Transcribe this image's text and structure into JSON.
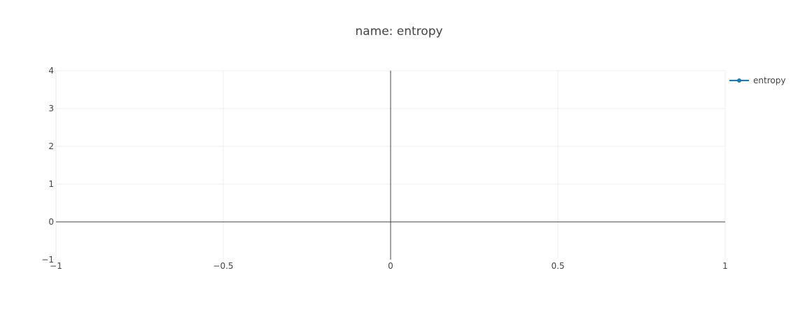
{
  "chart_data": {
    "type": "line",
    "title": "name: entropy",
    "xlabel": "",
    "ylabel": "",
    "xlim": [
      -1,
      1
    ],
    "ylim": [
      -1,
      4
    ],
    "x_ticks": [
      -1,
      -0.5,
      0,
      0.5,
      1
    ],
    "x_tick_labels": [
      "−1",
      "−0.5",
      "0",
      "0.5",
      "1"
    ],
    "y_ticks": [
      -1,
      0,
      1,
      2,
      3,
      4
    ],
    "y_tick_labels": [
      "−1",
      "0",
      "1",
      "2",
      "3",
      "4"
    ],
    "grid": true,
    "legend_position": "top-right",
    "series": [
      {
        "name": "entropy",
        "color": "#1f77b4",
        "x": [],
        "y": []
      }
    ]
  }
}
